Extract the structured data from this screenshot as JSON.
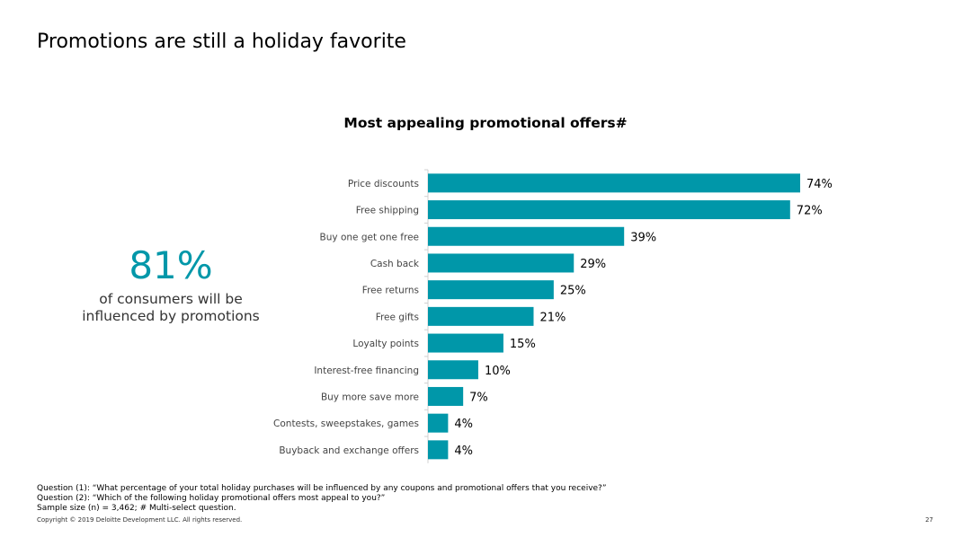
{
  "slide": {
    "title": "Promotions are still a holiday favorite",
    "page_number": "27",
    "copyright": "Copyright © 2019 Deloitte Development LLC. All rights reserved."
  },
  "stat": {
    "value": "81%",
    "caption": "of consumers will be influenced by promotions"
  },
  "footnotes": {
    "q1": "Question (1): “What percentage of your total holiday purchases will be influenced by any coupons and promotional offers that you receive?”",
    "q2": "Question (2): “Which of the following holiday promotional offers most appeal to you?”",
    "sample": "Sample size (n) = 3,462; # Multi-select question."
  },
  "colors": {
    "bar": "#0097a9",
    "accent": "#0097a9"
  },
  "chart_data": {
    "type": "bar",
    "orientation": "horizontal",
    "title": "Most appealing promotional offers#",
    "categories": [
      "Price discounts",
      "Free shipping",
      "Buy one get one free",
      "Cash back",
      "Free returns",
      "Free gifts",
      "Loyalty points",
      "Interest-free financing",
      "Buy more save more",
      "Contests, sweepstakes, games",
      "Buyback and exchange offers"
    ],
    "values": [
      74,
      72,
      39,
      29,
      25,
      21,
      15,
      10,
      7,
      4,
      4
    ],
    "labels": [
      "74%",
      "72%",
      "39%",
      "29%",
      "25%",
      "21%",
      "15%",
      "10%",
      "7%",
      "4%",
      "4%"
    ],
    "unit": "%",
    "xlim": [
      0,
      80
    ],
    "grid": false,
    "legend": "none"
  }
}
